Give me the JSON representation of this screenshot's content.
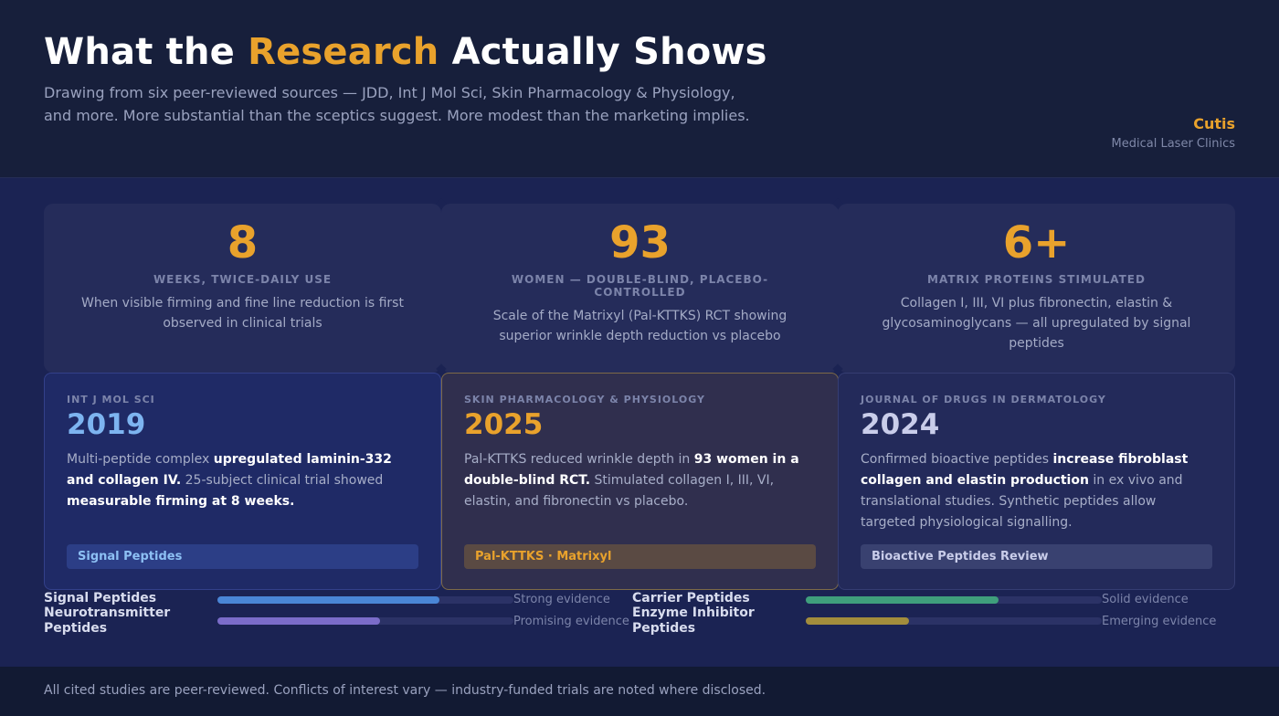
{
  "header": {
    "title_pre": "What the ",
    "title_highlight": "Research",
    "title_post": " Actually Shows",
    "subtitle": "Drawing from six peer-reviewed sources — JDD, Int J Mol Sci, Skin Pharmacology & Physiology, and more. More substantial than the sceptics suggest. More modest than the marketing implies.",
    "brand_name": "Cutis",
    "brand_sub": "Medical Laser Clinics"
  },
  "stats": [
    {
      "number": "8",
      "label": "Weeks, twice-daily use",
      "desc": "When visible firming and fine line reduction is first observed in clinical trials"
    },
    {
      "number": "93",
      "label": "Women — double-blind, placebo-controlled",
      "desc": "Scale of the Matrixyl (Pal-KTTKS) RCT showing superior wrinkle depth reduction vs placebo"
    },
    {
      "number": "6+",
      "label": "Matrix proteins stimulated",
      "desc": "Collagen I, III, VI plus fibronectin, elastin & glycosaminoglycans — all upregulated by signal peptides"
    }
  ],
  "cards": [
    {
      "source": "Int J Mol Sci",
      "year": "2019",
      "t1": "Multi-peptide complex ",
      "b1": "upregulated laminin-332 and collagen IV.",
      "t2": " 25-subject clinical trial showed ",
      "b2": "measurable firming at 8 weeks.",
      "t3": "",
      "tag": "Signal Peptides"
    },
    {
      "source": "Skin Pharmacology & Physiology",
      "year": "2025",
      "t1": "Pal-KTTKS reduced wrinkle depth in ",
      "b1": "93 women in a double-blind RCT.",
      "t2": " Stimulated collagen I, III, VI, elastin, and fibronectin vs placebo.",
      "b2": "",
      "t3": "",
      "tag": "Pal-KTTKS · Matrixyl"
    },
    {
      "source": "Journal of Drugs in Dermatology",
      "year": "2024",
      "t1": "Confirmed bioactive peptides ",
      "b1": "increase fibroblast collagen and elastin production",
      "t2": " in ex vivo and translational studies. Synthetic peptides allow targeted physiological signalling.",
      "b2": "",
      "t3": "",
      "tag": "Bioactive Peptides Review"
    }
  ],
  "evidence": [
    {
      "name": "Signal Peptides",
      "level": 0.75,
      "color": "#4a86d6",
      "label": "Strong evidence"
    },
    {
      "name": "Carrier Peptides",
      "level": 0.65,
      "color": "#3f9f7c",
      "label": "Solid evidence"
    },
    {
      "name": "Neurotransmitter Peptides",
      "level": 0.55,
      "color": "#7b6cc9",
      "label": "Promising evidence"
    },
    {
      "name": "Enzyme Inhibitor Peptides",
      "level": 0.35,
      "color": "#a38d3c",
      "label": "Emerging evidence"
    }
  ],
  "footer": {
    "text": "All cited studies are peer-reviewed. Conflicts of interest vary — industry-funded trials are noted where disclosed."
  }
}
